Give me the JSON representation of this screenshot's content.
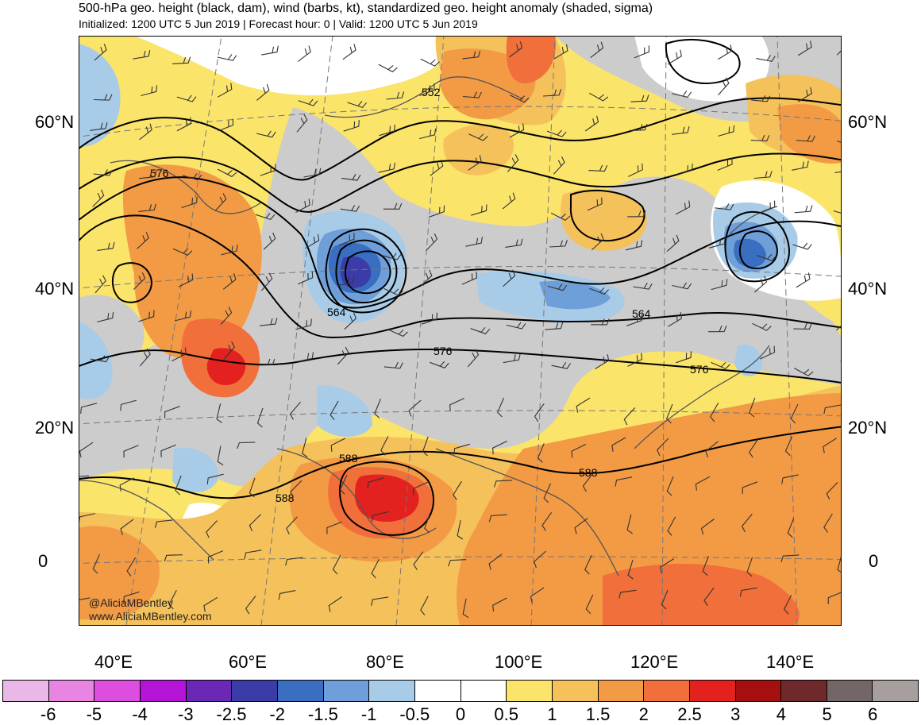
{
  "header": {
    "title": "500-hPa geo. height (black, dam), wind (barbs, kt), standardized geo. height anomaly (shaded, sigma)",
    "subtitle": "Initialized: 1200 UTC 5 Jun 2019 | Forecast hour: 0 | Valid: 1200 UTC 5 Jun 2019"
  },
  "map": {
    "lat_labels": [
      "60°N",
      "40°N",
      "20°N",
      "0"
    ],
    "lon_labels": [
      "40°E",
      "60°E",
      "80°E",
      "100°E",
      "120°E",
      "140°E"
    ],
    "contour_labels": [
      "552",
      "576",
      "564",
      "564",
      "576",
      "576",
      "588",
      "588",
      "588"
    ],
    "colors": {
      "neg_2": "#3c3ca8",
      "neg_15": "#3a6ec0",
      "neg_1": "#6f9fd8",
      "neg_05": "#a8cbe8",
      "neutral": "#ffffff",
      "pos_05": "#fbe46a",
      "pos_1": "#f5c15b",
      "pos_15": "#f39a45",
      "pos_2": "#f06f3a",
      "pos_25": "#e3211e",
      "land_gray": "#cccccc",
      "coast": "#555555"
    }
  },
  "credit": {
    "handle": "@AliciaMBentley",
    "website": "www.AliciaMBentley.com"
  },
  "colorbar": {
    "colors": [
      "#eab8e6",
      "#e884e2",
      "#dd4ee0",
      "#b314d7",
      "#6a28b4",
      "#3c3ca8",
      "#3a6ec0",
      "#6f9fd8",
      "#a8cbe8",
      "#ffffff",
      "#ffffff",
      "#fbe46a",
      "#f5c15b",
      "#f39a45",
      "#f06f3a",
      "#e3211e",
      "#a50f0f",
      "#6e2a2a",
      "#736666",
      "#a79e9e"
    ],
    "labels": [
      "-6",
      "-5",
      "-4",
      "-3",
      "-2.5",
      "-2",
      "-1.5",
      "-1",
      "-0.5",
      "0",
      "0.5",
      "1",
      "1.5",
      "2",
      "2.5",
      "3",
      "4",
      "5",
      "6"
    ]
  }
}
